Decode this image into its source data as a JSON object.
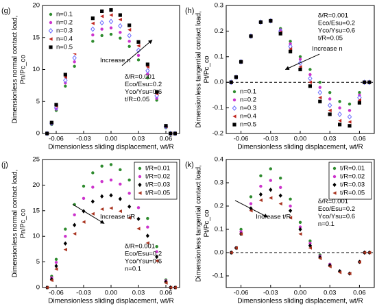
{
  "chart_data": [
    {
      "type": "scatter",
      "panel": "(g)",
      "xlabel": "Dimensionless sliding displacement, wt/R",
      "ylabel": [
        "Dimensionless normal contact load,",
        "Pn/Pc_co"
      ],
      "xlim": [
        -0.075,
        0.075
      ],
      "xticks": [
        -0.06,
        -0.03,
        {
          "value": 0,
          "label": "0.00"
        },
        0.03,
        0.06
      ],
      "ylim": [
        0,
        20
      ],
      "yticks": [
        0,
        5,
        10,
        15,
        20
      ],
      "legend": "upper left",
      "params": [
        "δ/R=0.001",
        "Eco/Esu=0.2",
        "Yco/Ysu=0.6",
        "t/R=0.05"
      ],
      "arrow_text": "Increase n",
      "x": [
        -0.07,
        -0.065,
        -0.06,
        -0.05,
        -0.04,
        -0.03,
        -0.02,
        -0.01,
        0,
        0.01,
        0.02,
        0.03,
        0.04,
        0.05,
        0.06,
        0.065,
        0.07
      ],
      "series": [
        {
          "name": "n=0.1",
          "color": "#2e8b2e",
          "marker": "circle",
          "values": [
            0,
            1.4,
            3.6,
            7.4,
            10.5,
            12.8,
            14.4,
            15.3,
            15.5,
            14.9,
            13.6,
            11.5,
            8.7,
            5.2,
            0.9,
            0,
            0
          ]
        },
        {
          "name": "n=0.2",
          "color": "#cc33cc",
          "marker": "circle",
          "values": [
            0,
            1.5,
            3.8,
            7.9,
            11.2,
            13.6,
            15.4,
            16.3,
            16.5,
            15.8,
            14.4,
            12.2,
            9.3,
            5.5,
            1.0,
            0,
            0
          ]
        },
        {
          "name": "n=0.3",
          "color": "#6a6aff",
          "marker": "diamond",
          "values": [
            0,
            1.6,
            4.0,
            8.3,
            11.8,
            14.5,
            16.3,
            17.3,
            17.5,
            16.8,
            15.3,
            13.0,
            9.8,
            5.9,
            1.1,
            0,
            0
          ]
        },
        {
          "name": "n=0.4",
          "color": "#c0261f",
          "marker": "triangle",
          "values": [
            0,
            1.7,
            4.3,
            8.8,
            12.5,
            15.3,
            17.2,
            18.3,
            18.5,
            17.8,
            16.2,
            13.7,
            10.4,
            6.2,
            1.1,
            0,
            0
          ]
        },
        {
          "name": "n=0.5",
          "color": "#000000",
          "marker": "square",
          "values": [
            0,
            1.7,
            4.5,
            9.2,
            13.0,
            16.0,
            18.0,
            19.1,
            19.3,
            18.5,
            16.9,
            14.3,
            10.8,
            6.5,
            1.2,
            0,
            0
          ]
        }
      ]
    },
    {
      "type": "scatter",
      "panel": "(h)",
      "xlabel": "Dimensionless sliding displacement, wt/R",
      "ylabel": [
        "Dimensionless tangential contact load,",
        "Pt/Pc_co"
      ],
      "xlim": [
        -0.075,
        0.075
      ],
      "xticks": [
        -0.06,
        -0.03,
        {
          "value": 0,
          "label": "0.00"
        },
        0.03,
        0.06
      ],
      "ylim": [
        -0.2,
        0.3
      ],
      "yticks": [
        -0.2,
        -0.1,
        {
          "value": 0,
          "label": "0.0"
        },
        0.1,
        0.2,
        0.3
      ],
      "hline": 0,
      "legend": "lower left",
      "params": [
        "δ/R=0.001",
        "Eco/Esu=0.2",
        "Yco/Ysu=0.6",
        "t/R=0.05"
      ],
      "arrow_text": "Increase n",
      "x": [
        -0.07,
        -0.065,
        -0.06,
        -0.05,
        -0.04,
        -0.03,
        -0.02,
        -0.01,
        0,
        0.01,
        0.02,
        0.03,
        0.04,
        0.05,
        0.06,
        0.065,
        0.07
      ],
      "series": [
        {
          "name": "n=0.1",
          "color": "#2e8b2e",
          "marker": "circle",
          "values": [
            0,
            0.02,
            0.08,
            0.18,
            0.235,
            0.24,
            0.21,
            0.16,
            0.1,
            0.05,
            0.0,
            -0.04,
            -0.075,
            -0.085,
            -0.04,
            0,
            0
          ]
        },
        {
          "name": "n=0.2",
          "color": "#cc33cc",
          "marker": "circle",
          "values": [
            0,
            0.02,
            0.08,
            0.18,
            0.235,
            0.24,
            0.205,
            0.15,
            0.09,
            0.03,
            -0.02,
            -0.065,
            -0.1,
            -0.11,
            -0.05,
            0,
            0
          ]
        },
        {
          "name": "n=0.3",
          "color": "#6a6aff",
          "marker": "diamond",
          "values": [
            0,
            0.02,
            0.08,
            0.18,
            0.235,
            0.24,
            0.2,
            0.14,
            0.075,
            0.015,
            -0.04,
            -0.09,
            -0.125,
            -0.135,
            -0.06,
            0,
            0
          ]
        },
        {
          "name": "n=0.4",
          "color": "#c0261f",
          "marker": "triangle",
          "values": [
            0,
            0.02,
            0.08,
            0.18,
            0.235,
            0.24,
            0.195,
            0.13,
            0.06,
            0.0,
            -0.06,
            -0.11,
            -0.15,
            -0.155,
            -0.07,
            0,
            0
          ]
        },
        {
          "name": "n=0.5",
          "color": "#000000",
          "marker": "square",
          "values": [
            0,
            0.02,
            0.08,
            0.18,
            0.235,
            0.24,
            0.19,
            0.12,
            0.05,
            -0.015,
            -0.075,
            -0.125,
            -0.165,
            -0.17,
            -0.08,
            0,
            0
          ]
        }
      ]
    },
    {
      "type": "scatter",
      "panel": "(j)",
      "xlabel": "Dimensionless sliding displacement, wt/R",
      "ylabel": [
        "Dimensionless normal contact load,",
        "Pn/Pc_co"
      ],
      "xlim": [
        -0.075,
        0.075
      ],
      "xticks": [
        -0.06,
        -0.03,
        {
          "value": 0,
          "label": "0.00"
        },
        0.03,
        0.06
      ],
      "ylim": [
        0,
        25
      ],
      "yticks": [
        0,
        5,
        10,
        15,
        20,
        25
      ],
      "legend": "upper right",
      "params": [
        "δ/R=0.001",
        "Eco/Esu=0.2",
        "Yco/Ysu=0.6",
        "n=0.1"
      ],
      "arrow_text": "Increase t/R",
      "x": [
        -0.07,
        -0.065,
        -0.06,
        -0.05,
        -0.04,
        -0.03,
        -0.02,
        -0.01,
        0,
        0.01,
        0.02,
        0.03,
        0.04,
        0.05,
        0.06,
        0.065,
        0.07
      ],
      "series": [
        {
          "name": "t/R=0.01",
          "color": "#2e8b2e",
          "marker": "circle",
          "values": [
            0,
            2.2,
            5.5,
            11.4,
            16.2,
            19.8,
            22.4,
            23.7,
            24.0,
            23.0,
            21.0,
            17.8,
            13.5,
            8.0,
            1.5,
            0,
            0
          ]
        },
        {
          "name": "t/R=0.02",
          "color": "#cc33cc",
          "marker": "circle",
          "values": [
            0,
            1.9,
            4.9,
            10.0,
            14.2,
            17.4,
            19.6,
            20.7,
            21.0,
            20.2,
            18.4,
            15.6,
            11.8,
            7.0,
            1.3,
            0,
            0
          ]
        },
        {
          "name": "t/R=0.03",
          "color": "#000000",
          "marker": "diamond-filled",
          "values": [
            0,
            1.6,
            4.2,
            8.6,
            12.2,
            14.9,
            16.8,
            17.8,
            18.0,
            17.3,
            15.8,
            13.4,
            10.1,
            6.0,
            1.1,
            0,
            0
          ]
        },
        {
          "name": "t/R=0.05",
          "color": "#a8321e",
          "marker": "triangle",
          "values": [
            0,
            1.4,
            3.6,
            7.4,
            10.5,
            12.8,
            14.4,
            15.3,
            15.5,
            14.9,
            13.6,
            11.5,
            8.7,
            5.2,
            0.9,
            0,
            0
          ]
        }
      ]
    },
    {
      "type": "scatter",
      "panel": "(k)",
      "xlabel": "Dimensionless sliding displacement, wt/R",
      "ylabel": [
        "Dimensionless tangential contact load,",
        "Pt/Pc_co"
      ],
      "xlim": [
        -0.075,
        0.075
      ],
      "xticks": [
        -0.06,
        -0.03,
        {
          "value": 0,
          "label": "0.00"
        },
        0.03,
        0.06
      ],
      "ylim": [
        -0.15,
        0.4
      ],
      "yticks": [
        -0.1,
        {
          "value": 0,
          "label": "0.0"
        },
        0.1,
        0.2,
        0.3,
        0.4
      ],
      "hline": 0,
      "legend": "upper right",
      "params": [
        "δ/R=0.001",
        "Eco/Esu=0.2",
        "Yco/Ysu=0.6",
        "n=0.1"
      ],
      "arrow_text": "Increase t/R",
      "x": [
        -0.07,
        -0.065,
        -0.06,
        -0.05,
        -0.04,
        -0.03,
        -0.02,
        -0.01,
        0,
        0.01,
        0.02,
        0.03,
        0.04,
        0.05,
        0.06,
        0.065,
        0.07
      ],
      "series": [
        {
          "name": "t/R=0.01",
          "color": "#2e8b2e",
          "marker": "circle",
          "values": [
            0,
            0.02,
            0.1,
            0.24,
            0.33,
            0.36,
            0.32,
            0.23,
            0.13,
            0.05,
            -0.01,
            -0.05,
            -0.08,
            -0.09,
            -0.04,
            0,
            0
          ]
        },
        {
          "name": "t/R=0.02",
          "color": "#cc33cc",
          "marker": "circle",
          "values": [
            0,
            0.02,
            0.09,
            0.21,
            0.285,
            0.31,
            0.28,
            0.2,
            0.11,
            0.04,
            -0.015,
            -0.05,
            -0.08,
            -0.09,
            -0.04,
            0,
            0
          ]
        },
        {
          "name": "t/R=0.03",
          "color": "#000000",
          "marker": "diamond-filled",
          "values": [
            0,
            0.02,
            0.08,
            0.19,
            0.25,
            0.27,
            0.245,
            0.18,
            0.1,
            0.03,
            -0.02,
            -0.055,
            -0.08,
            -0.09,
            -0.04,
            0,
            0
          ]
        },
        {
          "name": "t/R=0.05",
          "color": "#a8321e",
          "marker": "triangle",
          "values": [
            0,
            0.02,
            0.08,
            0.18,
            0.225,
            0.235,
            0.21,
            0.15,
            0.08,
            0.02,
            -0.025,
            -0.06,
            -0.085,
            -0.09,
            -0.04,
            0,
            0
          ]
        }
      ]
    }
  ]
}
